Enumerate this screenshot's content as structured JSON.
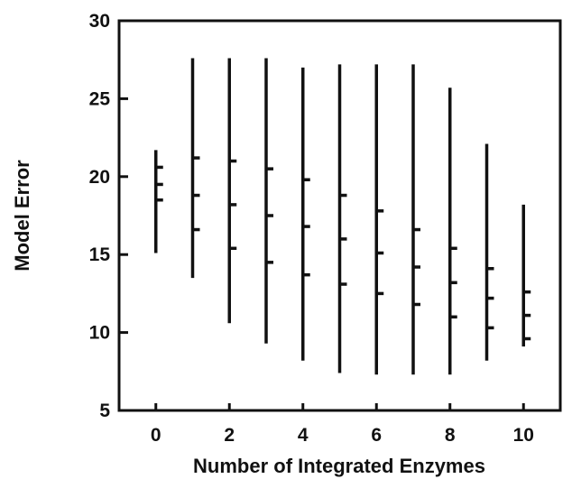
{
  "chart_data": {
    "type": "range",
    "title": "",
    "xlabel": "Number of Integrated Enzymes",
    "ylabel": "Model Error",
    "xlim": [
      -1,
      11
    ],
    "ylim": [
      5,
      30
    ],
    "xticks": [
      "0",
      "2",
      "4",
      "6",
      "8",
      "10"
    ],
    "yticks": [
      "5",
      "10",
      "15",
      "20",
      "25",
      "30"
    ],
    "grid": false,
    "legend": "none",
    "colors": {
      "marks": "#111111",
      "axes": "#111111"
    },
    "series": [
      {
        "x": 0,
        "min": 15.1,
        "max": 21.7,
        "ticks": [
          20.6,
          19.5,
          18.5
        ]
      },
      {
        "x": 1,
        "min": 13.5,
        "max": 27.6,
        "ticks": [
          21.2,
          18.8,
          16.6
        ]
      },
      {
        "x": 2,
        "min": 10.6,
        "max": 27.6,
        "ticks": [
          21.0,
          18.2,
          15.4
        ]
      },
      {
        "x": 3,
        "min": 9.3,
        "max": 27.6,
        "ticks": [
          20.5,
          17.5,
          14.5
        ]
      },
      {
        "x": 4,
        "min": 8.2,
        "max": 27.0,
        "ticks": [
          19.8,
          16.8,
          13.7
        ]
      },
      {
        "x": 5,
        "min": 7.4,
        "max": 27.2,
        "ticks": [
          18.8,
          16.0,
          13.1
        ]
      },
      {
        "x": 6,
        "min": 7.3,
        "max": 27.2,
        "ticks": [
          17.8,
          15.1,
          12.5
        ]
      },
      {
        "x": 7,
        "min": 7.3,
        "max": 27.2,
        "ticks": [
          16.6,
          14.2,
          11.8
        ]
      },
      {
        "x": 8,
        "min": 7.3,
        "max": 25.7,
        "ticks": [
          15.4,
          13.2,
          11.0
        ]
      },
      {
        "x": 9,
        "min": 8.2,
        "max": 22.1,
        "ticks": [
          14.1,
          12.2,
          10.3
        ]
      },
      {
        "x": 10,
        "min": 9.1,
        "max": 18.2,
        "ticks": [
          12.6,
          11.1,
          9.6
        ]
      }
    ]
  }
}
